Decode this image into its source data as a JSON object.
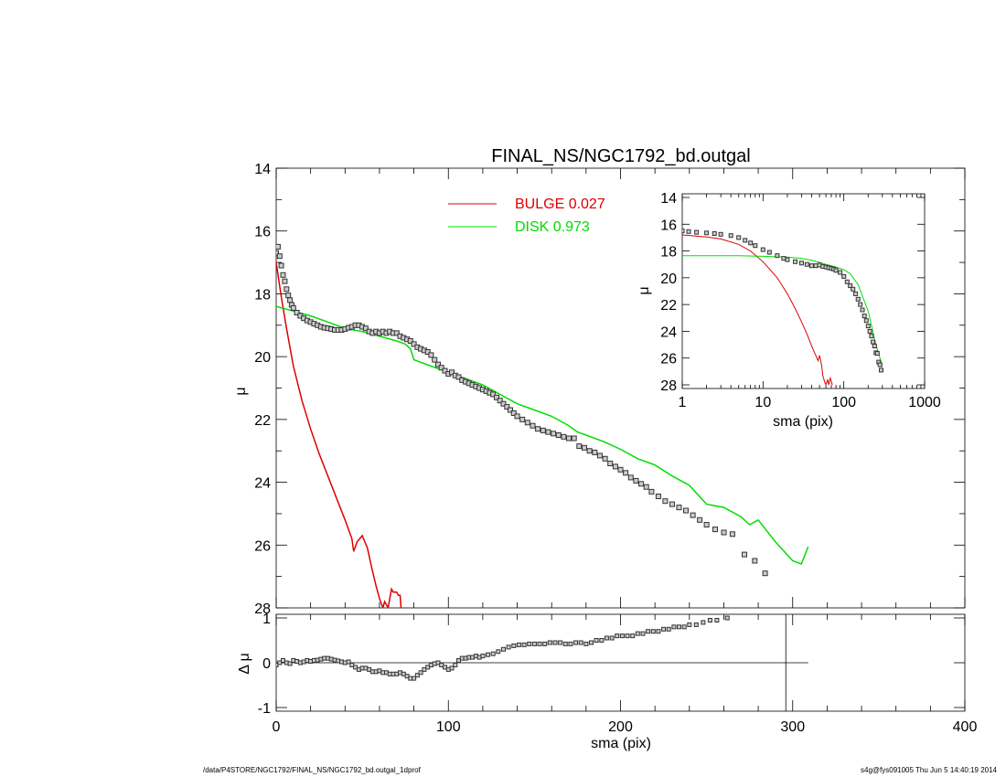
{
  "title": "FINAL_NS/NGC1792_bd.outgal",
  "colors": {
    "bulge": "#dd0000",
    "disk": "#00dd00",
    "data": "#000000",
    "bg": "#ffffff"
  },
  "footer": {
    "left": "/data/P4STORE/NGC1792/FINAL_NS/NGC1792_bd.outgal_1dprof",
    "right": "s4g@fys091005  Thu Jun  5 14:40:19 2014"
  },
  "chart_data": [
    {
      "panel": "main",
      "type": "line",
      "title": "FINAL_NS/NGC1792_bd.outgal",
      "ylabel": "μ",
      "xlim": [
        0,
        400
      ],
      "ylim": [
        28,
        14
      ],
      "yticks": [
        14,
        16,
        18,
        20,
        22,
        24,
        26,
        28
      ],
      "legend": [
        {
          "name": "BULGE",
          "value": "0.027",
          "color": "#dd0000"
        },
        {
          "name": "DISK",
          "value": "0.973",
          "color": "#00dd00"
        }
      ],
      "legend_position": "top-center",
      "series": [
        {
          "name": "BULGE",
          "kind": "line",
          "color": "#dd0000",
          "x": [
            0,
            3,
            6,
            10,
            15,
            20,
            25,
            30,
            35,
            40,
            44,
            45,
            47,
            50,
            53,
            55,
            58,
            60,
            62,
            63,
            65,
            66,
            67,
            68,
            70,
            71,
            72,
            72.5
          ],
          "y": [
            17.0,
            18.1,
            19.1,
            20.3,
            21.4,
            22.3,
            23.1,
            23.8,
            24.5,
            25.2,
            25.8,
            26.2,
            25.9,
            25.7,
            26.1,
            26.6,
            27.3,
            27.7,
            28.0,
            27.8,
            28.0,
            27.7,
            27.4,
            27.5,
            27.5,
            27.6,
            27.6,
            28.0
          ]
        },
        {
          "name": "DISK",
          "kind": "line",
          "color": "#00dd00",
          "x": [
            0,
            10,
            20,
            30,
            40,
            50,
            60,
            70,
            75,
            78,
            80,
            90,
            100,
            110,
            120,
            130,
            140,
            150,
            160,
            170,
            175,
            180,
            190,
            200,
            210,
            220,
            230,
            240,
            245,
            250,
            260,
            270,
            275,
            280,
            290,
            300,
            305,
            309
          ],
          "y": [
            18.4,
            18.55,
            18.7,
            18.9,
            19.1,
            19.2,
            19.35,
            19.5,
            19.6,
            19.75,
            20.1,
            20.3,
            20.5,
            20.7,
            20.9,
            21.2,
            21.5,
            21.7,
            21.9,
            22.2,
            22.4,
            22.5,
            22.7,
            22.95,
            23.25,
            23.45,
            23.8,
            24.1,
            24.4,
            24.7,
            24.8,
            25.1,
            25.35,
            25.2,
            25.9,
            26.5,
            26.6,
            26.05
          ]
        },
        {
          "name": "DATA",
          "kind": "markers",
          "color": "#000000",
          "x": [
            0,
            1,
            2,
            3,
            4,
            5,
            6,
            7,
            8,
            9,
            10,
            12,
            14,
            16,
            18,
            20,
            22,
            24,
            26,
            28,
            30,
            32,
            34,
            36,
            38,
            40,
            42,
            44,
            46,
            48,
            50,
            52,
            54,
            56,
            58,
            60,
            62,
            64,
            66,
            68,
            70,
            72,
            74,
            76,
            78,
            80,
            82,
            84,
            86,
            88,
            90,
            92,
            94,
            96,
            98,
            100,
            102,
            104,
            106,
            108,
            110,
            112,
            114,
            116,
            118,
            120,
            122,
            124,
            126,
            128,
            130,
            132,
            134,
            136,
            138,
            140,
            143,
            146,
            149,
            152,
            155,
            158,
            161,
            164,
            167,
            170,
            173,
            176,
            179,
            182,
            185,
            188,
            191,
            194,
            197,
            200,
            203,
            206,
            209,
            212,
            215,
            218,
            222,
            226,
            230,
            234,
            238,
            242,
            246,
            250,
            255,
            260,
            265,
            272,
            278,
            284
          ],
          "y": [
            16.7,
            16.5,
            16.8,
            17.1,
            17.4,
            17.6,
            17.85,
            18.05,
            18.2,
            18.35,
            18.45,
            18.6,
            18.7,
            18.78,
            18.85,
            18.9,
            18.95,
            19.0,
            19.05,
            19.08,
            19.1,
            19.12,
            19.15,
            19.15,
            19.15,
            19.12,
            19.08,
            19.05,
            19.0,
            19.0,
            19.05,
            19.1,
            19.2,
            19.25,
            19.2,
            19.25,
            19.2,
            19.25,
            19.2,
            19.25,
            19.25,
            19.35,
            19.4,
            19.45,
            19.5,
            19.6,
            19.7,
            19.75,
            19.8,
            19.85,
            19.95,
            20.1,
            20.25,
            20.35,
            20.45,
            20.55,
            20.5,
            20.6,
            20.65,
            20.75,
            20.8,
            20.85,
            20.9,
            20.95,
            21.0,
            21.05,
            21.1,
            21.15,
            21.2,
            21.3,
            21.4,
            21.5,
            21.6,
            21.7,
            21.8,
            21.9,
            22.0,
            22.1,
            22.2,
            22.3,
            22.35,
            22.4,
            22.45,
            22.5,
            22.55,
            22.6,
            22.6,
            22.85,
            22.9,
            23.0,
            23.05,
            23.15,
            23.25,
            23.4,
            23.5,
            23.6,
            23.7,
            23.85,
            23.95,
            24.05,
            24.15,
            24.3,
            24.45,
            24.6,
            24.7,
            24.8,
            24.9,
            25.05,
            25.2,
            25.35,
            25.5,
            25.6,
            25.65,
            26.3,
            26.5,
            26.9
          ]
        }
      ]
    },
    {
      "panel": "residual",
      "type": "scatter",
      "xlabel": "sma (pix)",
      "ylabel": "Δ μ",
      "xlim": [
        0,
        400
      ],
      "ylim": [
        -1,
        1
      ],
      "xticks": [
        0,
        100,
        200,
        300,
        400
      ],
      "yticks": [
        -1,
        0,
        1
      ],
      "hline": {
        "y": 0,
        "x_range": [
          0,
          309
        ]
      },
      "vline": {
        "x": 296
      },
      "x": [
        0,
        2,
        4,
        6,
        8,
        10,
        12,
        14,
        16,
        18,
        20,
        22,
        24,
        26,
        28,
        30,
        32,
        34,
        36,
        38,
        40,
        42,
        44,
        46,
        48,
        50,
        52,
        54,
        56,
        58,
        60,
        62,
        64,
        66,
        68,
        70,
        72,
        74,
        76,
        78,
        80,
        82,
        84,
        86,
        88,
        90,
        92,
        94,
        96,
        98,
        100,
        102,
        104,
        106,
        108,
        110,
        112,
        114,
        116,
        118,
        120,
        123,
        126,
        129,
        132,
        135,
        138,
        141,
        144,
        147,
        150,
        153,
        156,
        159,
        162,
        165,
        168,
        171,
        174,
        177,
        180,
        183,
        186,
        189,
        192,
        195,
        198,
        201,
        204,
        207,
        210,
        213,
        216,
        219,
        222,
        225,
        228,
        231,
        234,
        237,
        240,
        244,
        248,
        252,
        256,
        262
      ],
      "y": [
        -0.05,
        0.0,
        0.05,
        0.0,
        -0.02,
        0.05,
        0.03,
        0.0,
        0.02,
        0.05,
        0.03,
        0.05,
        0.06,
        0.08,
        0.1,
        0.1,
        0.08,
        0.06,
        0.04,
        0.02,
        0.0,
        0.02,
        -0.05,
        -0.1,
        -0.15,
        -0.12,
        -0.12,
        -0.15,
        -0.2,
        -0.2,
        -0.18,
        -0.22,
        -0.22,
        -0.25,
        -0.25,
        -0.25,
        -0.22,
        -0.25,
        -0.3,
        -0.35,
        -0.35,
        -0.28,
        -0.22,
        -0.15,
        -0.1,
        -0.05,
        -0.02,
        0.0,
        -0.05,
        -0.1,
        -0.15,
        -0.12,
        -0.05,
        0.05,
        0.1,
        0.1,
        0.12,
        0.12,
        0.15,
        0.12,
        0.15,
        0.18,
        0.2,
        0.25,
        0.3,
        0.35,
        0.38,
        0.4,
        0.4,
        0.42,
        0.42,
        0.42,
        0.42,
        0.45,
        0.45,
        0.45,
        0.42,
        0.42,
        0.45,
        0.45,
        0.42,
        0.45,
        0.5,
        0.5,
        0.55,
        0.55,
        0.6,
        0.6,
        0.6,
        0.6,
        0.65,
        0.65,
        0.7,
        0.7,
        0.7,
        0.75,
        0.75,
        0.8,
        0.8,
        0.8,
        0.85,
        0.85,
        0.9,
        0.95,
        0.95,
        1.0
      ]
    },
    {
      "panel": "inset",
      "type": "line",
      "xlabel": "sma (pix)",
      "ylabel": "μ",
      "xscale": "log",
      "xlim": [
        1,
        1000
      ],
      "ylim": [
        28,
        14
      ],
      "xticks": [
        1,
        10,
        100,
        1000
      ],
      "yticks": [
        14,
        16,
        18,
        20,
        22,
        24,
        26,
        28
      ],
      "series": [
        {
          "name": "BULGE",
          "kind": "line",
          "color": "#dd0000",
          "x": [
            1,
            2,
            3,
            5,
            7,
            10,
            15,
            20,
            25,
            30,
            35,
            40,
            45,
            48,
            50,
            53,
            55,
            58,
            60,
            63,
            65,
            68,
            72
          ],
          "y": [
            16.8,
            16.95,
            17.1,
            17.5,
            18.0,
            18.8,
            20.0,
            21.2,
            22.3,
            23.3,
            24.2,
            25.1,
            25.8,
            26.2,
            25.8,
            26.5,
            27.3,
            27.8,
            28.0,
            27.6,
            28.0,
            27.5,
            28.0
          ]
        },
        {
          "name": "DISK",
          "kind": "line",
          "color": "#00dd00",
          "x": [
            1,
            5,
            10,
            20,
            30,
            40,
            50,
            60,
            70,
            80,
            100,
            120,
            150,
            200,
            250,
            300
          ],
          "y": [
            18.35,
            18.35,
            18.4,
            18.45,
            18.55,
            18.7,
            18.85,
            19.0,
            19.1,
            19.2,
            19.4,
            19.7,
            20.5,
            22.5,
            25.0,
            26.6
          ]
        },
        {
          "name": "DATA",
          "kind": "markers",
          "color": "#000000",
          "x": [
            1,
            1.2,
            1.5,
            2,
            2.5,
            3,
            4,
            5,
            6,
            7,
            8,
            10,
            12,
            15,
            18,
            20,
            25,
            30,
            35,
            40,
            45,
            50,
            55,
            60,
            65,
            70,
            75,
            80,
            90,
            100,
            110,
            120,
            130,
            140,
            150,
            160,
            170,
            180,
            190,
            200,
            210,
            220,
            230,
            240,
            250,
            260,
            270,
            280,
            290
          ],
          "y": [
            16.5,
            16.55,
            16.6,
            16.65,
            16.7,
            16.75,
            16.85,
            17.0,
            17.2,
            17.4,
            17.6,
            17.9,
            18.1,
            18.35,
            18.55,
            18.65,
            18.8,
            18.9,
            19.0,
            19.1,
            19.1,
            19.05,
            19.15,
            19.2,
            19.25,
            19.3,
            19.35,
            19.45,
            19.6,
            19.9,
            20.3,
            20.6,
            20.85,
            21.2,
            21.6,
            22.0,
            22.4,
            22.85,
            23.2,
            23.6,
            24.0,
            24.35,
            24.8,
            25.1,
            25.6,
            25.65,
            26.3,
            26.5,
            26.9
          ]
        }
      ]
    }
  ]
}
